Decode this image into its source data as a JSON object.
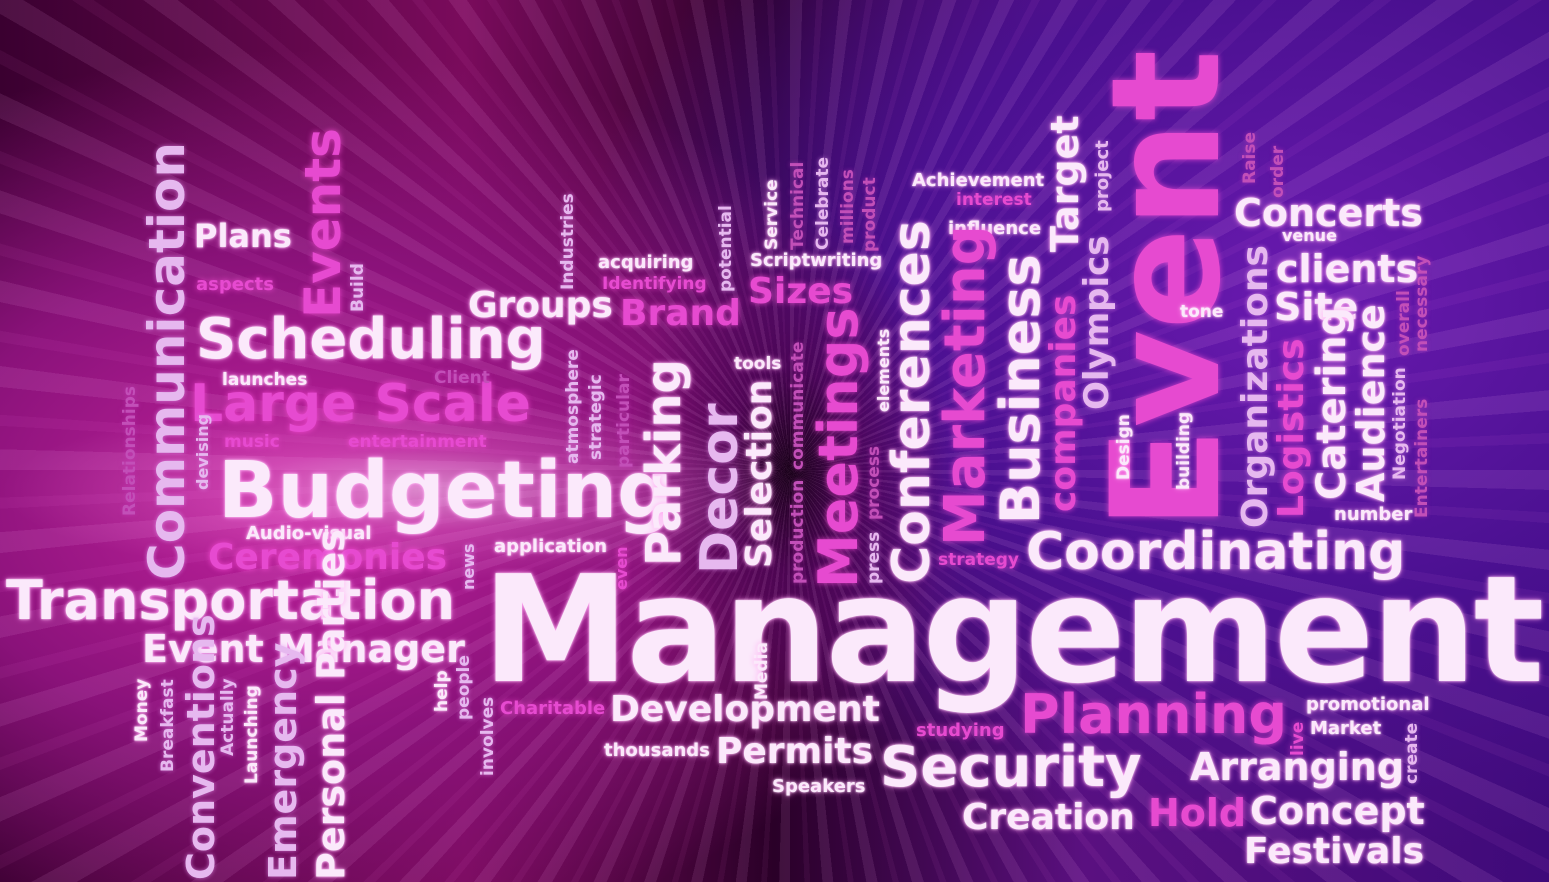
{
  "words": {
    "management": "Management",
    "event": "Event",
    "budgeting": "Budgeting",
    "transportation": "Transportation",
    "coordinating": "Coordinating",
    "planning": "Planning",
    "security": "Security",
    "scheduling": "Scheduling",
    "large_scale": "Large Scale",
    "communication": "Communication",
    "events": "Events",
    "plans": "Plans",
    "aspects": "aspects",
    "build": "Build",
    "groups": "Groups",
    "brand": "Brand",
    "industries": "Industries",
    "acquiring": "acquiring",
    "identifying": "Identifying",
    "potential": "potential",
    "service": "Service",
    "technical": "Technical",
    "celebrate": "Celebrate",
    "millions": "millions",
    "product": "product",
    "scriptwriting": "Scriptwriting",
    "sizes": "Sizes",
    "achievement": "Achievement",
    "interest": "interest",
    "influence": "influence",
    "target": "Target",
    "project": "project",
    "concerts": "Concerts",
    "venue": "venue",
    "raise": "Raise",
    "order": "order",
    "clients": "clients",
    "site": "Site",
    "tone": "tone",
    "launches": "launches",
    "client": "Client",
    "relationships": "Relationships",
    "music": "music",
    "entertainment": "entertainment",
    "devising": "devising",
    "audio_visual": "Audio-visual",
    "ceremonies": "Ceremonies",
    "news": "news",
    "application": "application",
    "atmosphere": "atmosphere",
    "strategic": "strategic",
    "particular": "particular",
    "parking": "Parking",
    "decor": "Decor",
    "tools": "tools",
    "selection": "Selection",
    "production": "production",
    "communicate": "communicate",
    "meetings": "Meetings",
    "process": "process",
    "press": "press",
    "elements": "elements",
    "conferences": "Conferences",
    "marketing": "Marketing",
    "business": "Business",
    "companies": "companies",
    "olympics": "Olympics",
    "design": "Design",
    "building": "building",
    "organizations": "Organizations",
    "logistics": "Logistics",
    "catering": "Catering",
    "audience": "Audience",
    "negotiation": "Negotiation",
    "overall": "overall",
    "necessary": "necessary",
    "entertainers": "Entertainers",
    "number": "number",
    "strategy": "strategy",
    "event_manager": "Event Manager",
    "money": "Money",
    "breakfast": "Breakfast",
    "conventions": "Conventions",
    "actually": "Actually",
    "launching": "Launching",
    "emergency": "Emergency",
    "personal_parties": "Personal Parties",
    "help": "help",
    "people": "people",
    "involves": "involves",
    "charitable": "Charitable",
    "media": "Media",
    "development": "Development",
    "thousands": "thousands",
    "permits": "Permits",
    "speakers": "Speakers",
    "even": "even",
    "studying": "studying",
    "promotional": "promotional",
    "market": "Market",
    "live": "live",
    "create": "create",
    "arranging": "Arranging",
    "creation": "Creation",
    "hold": "Hold",
    "concept": "Concept",
    "festivals": "Festivals"
  }
}
